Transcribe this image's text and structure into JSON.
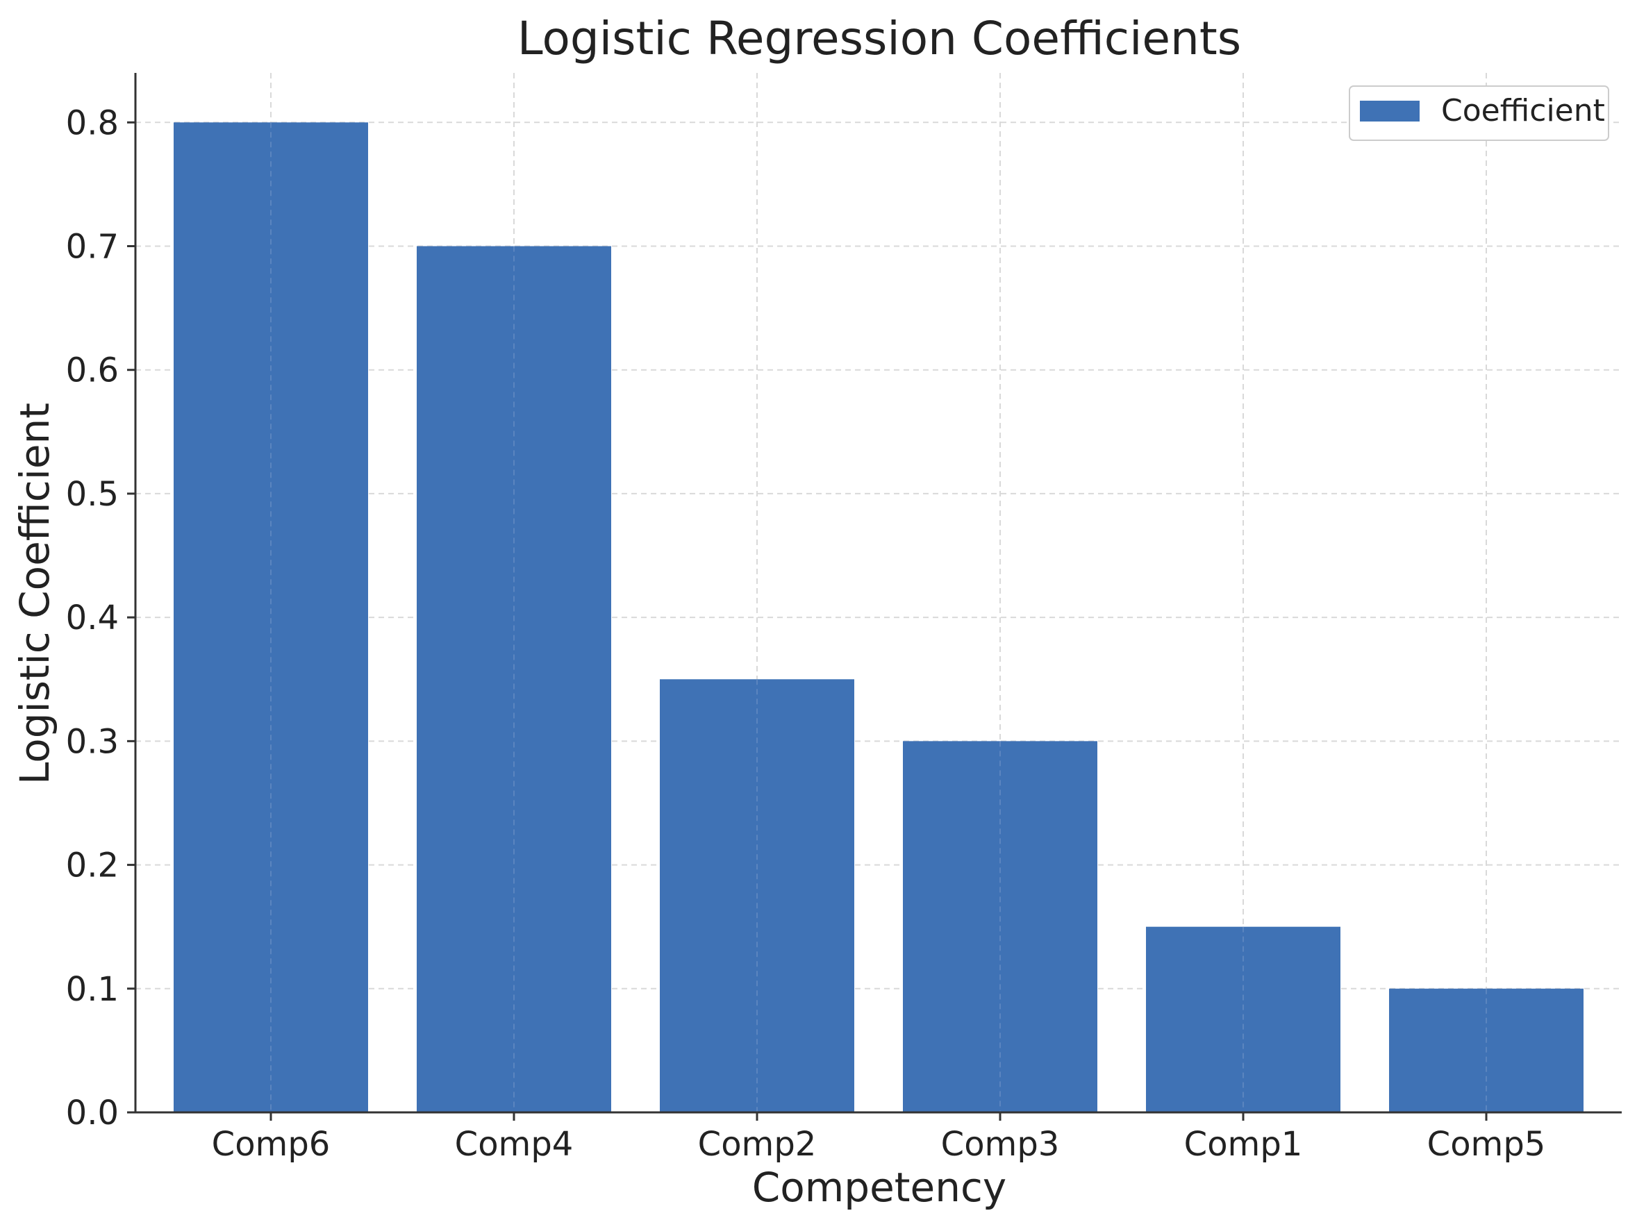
{
  "chart_data": {
    "type": "bar",
    "title": "Logistic Regression Coefficients",
    "xlabel": "Competency",
    "ylabel": "Logistic Coefficient",
    "categories": [
      "Comp6",
      "Comp4",
      "Comp2",
      "Comp3",
      "Comp1",
      "Comp5"
    ],
    "series": [
      {
        "name": "Coefficient",
        "values": [
          0.8,
          0.7,
          0.35,
          0.3,
          0.15,
          0.1
        ],
        "color": "#3f72b5"
      }
    ],
    "ylim": [
      0,
      0.84
    ],
    "yticks": [
      0.0,
      0.1,
      0.2,
      0.3,
      0.4,
      0.5,
      0.6,
      0.7,
      0.8
    ],
    "ytick_labels": [
      "0.0",
      "0.1",
      "0.2",
      "0.3",
      "0.4",
      "0.5",
      "0.6",
      "0.7",
      "0.8"
    ],
    "grid": true,
    "legend_position": "top-right"
  }
}
